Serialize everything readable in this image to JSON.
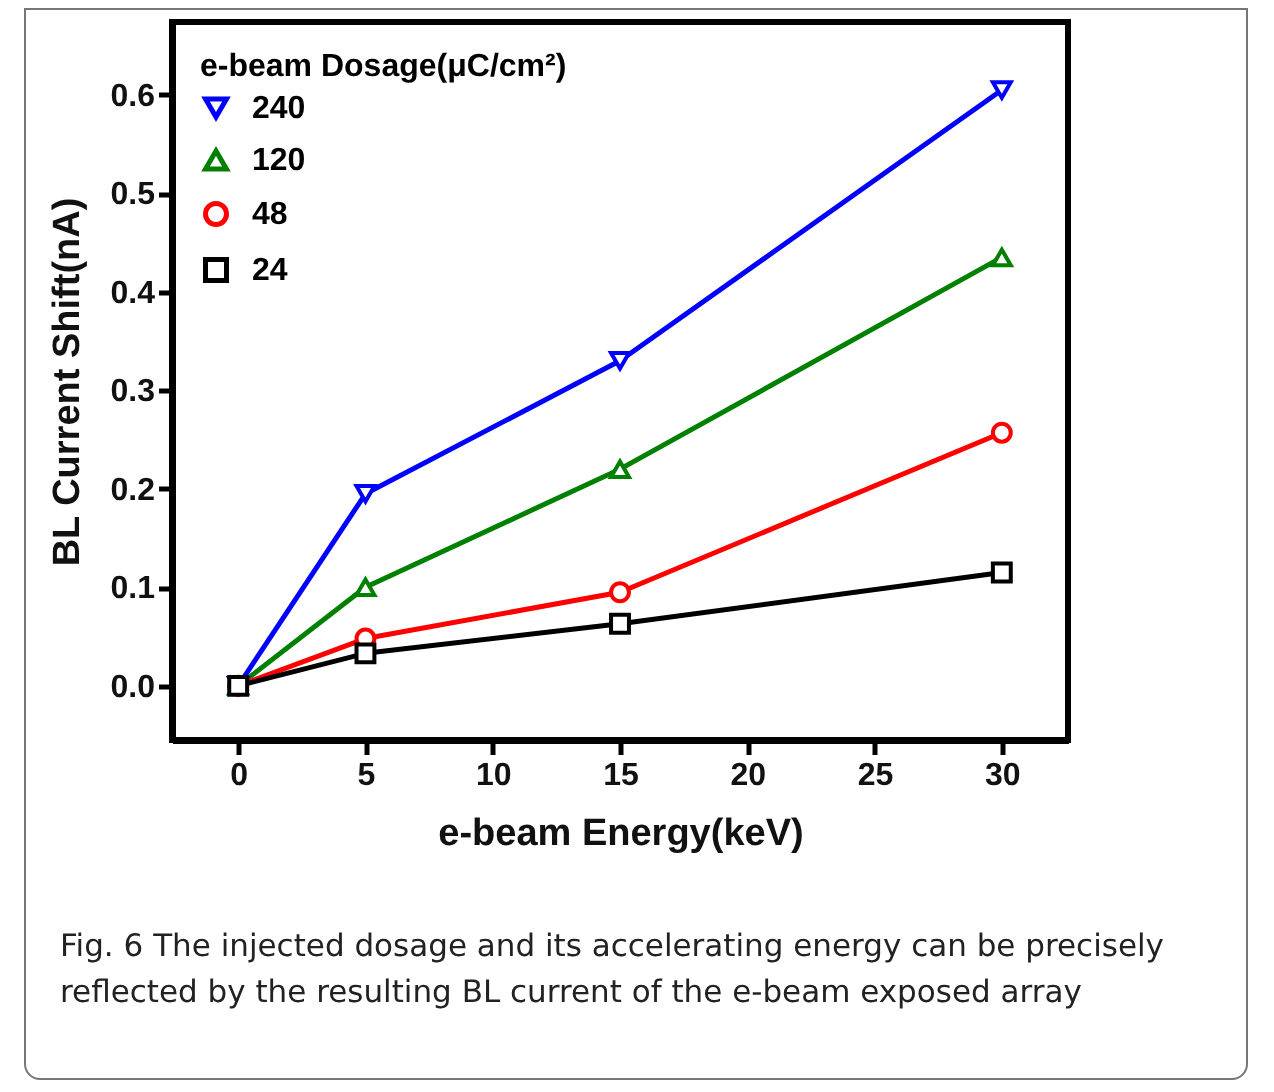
{
  "chart_data": {
    "type": "line",
    "xlabel": "e-beam Energy(keV)",
    "ylabel": "BL Current Shift(nA)",
    "legend_title": "e-beam Dosage(μC/cm²)",
    "x": [
      0,
      5,
      15,
      30
    ],
    "series": [
      {
        "name": "240",
        "color": "#0000ff",
        "marker": "triangle-down",
        "values": [
          0,
          0.195,
          0.33,
          0.605
        ]
      },
      {
        "name": "120",
        "color": "#008000",
        "marker": "triangle-up",
        "values": [
          0,
          0.1,
          0.22,
          0.435
        ]
      },
      {
        "name": "48",
        "color": "#ff0000",
        "marker": "circle",
        "values": [
          0,
          0.048,
          0.095,
          0.257
        ]
      },
      {
        "name": "24",
        "color": "#000000",
        "marker": "square",
        "values": [
          0,
          0.033,
          0.063,
          0.115
        ]
      }
    ],
    "xlim": [
      -2.6,
      32.6
    ],
    "xticks": [
      0,
      5,
      10,
      15,
      20,
      25,
      30
    ],
    "ylim": [
      -0.055,
      0.674
    ],
    "yticks": [
      {
        "value": 0,
        "label": "0.0"
      },
      0.1,
      0.2,
      0.3,
      0.4,
      0.5,
      0.6
    ],
    "legend": "top left",
    "grid": false,
    "annotations": [
      "Fig. 6  The injected dosage and its accelerating energy can be precisely reflected by the resulting BL current of the e-beam exposed array"
    ]
  }
}
